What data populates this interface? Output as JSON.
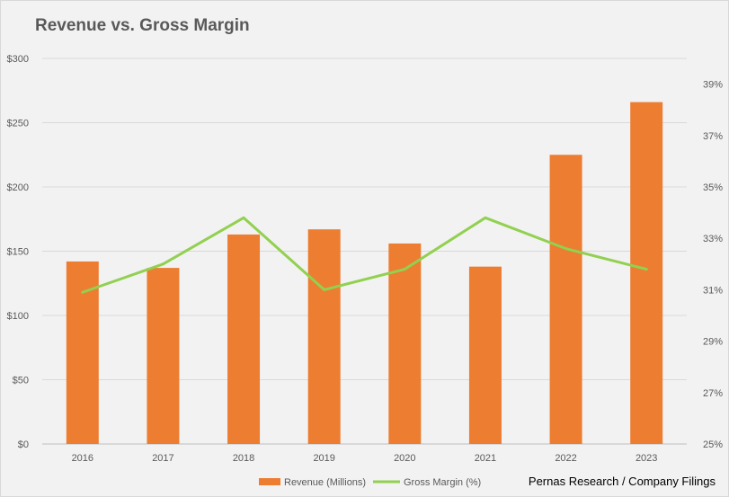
{
  "chart_data": {
    "type": "bar+line",
    "title": "Revenue vs. Gross Margin",
    "categories": [
      "2016",
      "2017",
      "2018",
      "2019",
      "2020",
      "2021",
      "2022",
      "2023"
    ],
    "series": [
      {
        "name": "Revenue (Millions)",
        "type": "bar",
        "axis": "left",
        "color": "#ed7d31",
        "values": [
          142,
          137,
          163,
          167,
          156,
          138,
          225,
          266
        ]
      },
      {
        "name": "Gross Margin (%)",
        "type": "line",
        "axis": "right",
        "color": "#92d050",
        "values": [
          30.9,
          32.0,
          33.8,
          31.0,
          31.8,
          33.8,
          32.6,
          31.8
        ]
      }
    ],
    "y_left": {
      "min": 0,
      "max": 300,
      "step": 50,
      "tick_labels": [
        "$0",
        "$50",
        "$100",
        "$150",
        "$200",
        "$250",
        "$300"
      ]
    },
    "y_right": {
      "min": 25,
      "max": 40,
      "step": 2,
      "tick_labels": [
        "25%",
        "27%",
        "29%",
        "31%",
        "33%",
        "35%",
        "37%",
        "39%"
      ]
    },
    "grid": true,
    "legend_position": "bottom",
    "source": "Pernas Research / Company Filings"
  }
}
